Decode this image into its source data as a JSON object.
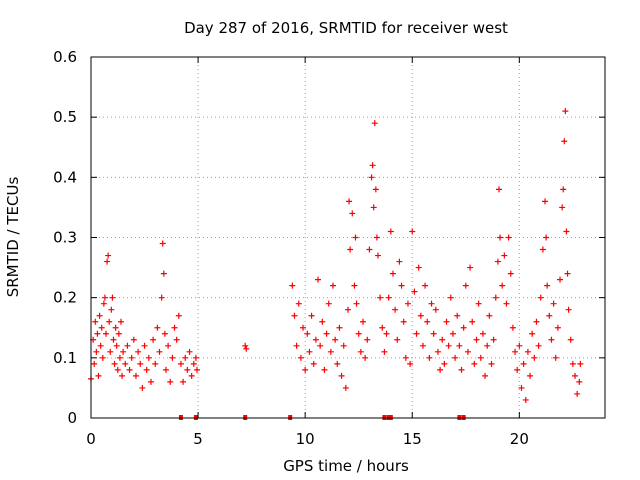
{
  "chart_data": {
    "type": "scatter",
    "title": "Day 287 of 2016, SRMTID for receiver west",
    "xlabel": "GPS time / hours",
    "ylabel": "SRMTID / TECUs",
    "xlim": [
      0,
      24
    ],
    "ylim": [
      0,
      0.6
    ],
    "grid": true,
    "xticks": [
      0,
      5,
      10,
      15,
      20
    ],
    "xtick_labels": [
      "0",
      "5",
      "10",
      "15",
      "20"
    ],
    "yticks": [
      0,
      0.1,
      0.2,
      0.3,
      0.4,
      0.5,
      0.6
    ],
    "ytick_labels": [
      "0",
      "0.1",
      "0.2",
      "0.3",
      "0.4",
      "0.5",
      "0.6"
    ],
    "marker": "+",
    "color": "#ff0000",
    "zero_markers_x": [
      4.2,
      4.9,
      7.2,
      9.3,
      13.7,
      13.9,
      14.0,
      17.2,
      17.4
    ],
    "series": [
      {
        "name": "SRMTID",
        "points": [
          [
            0.0,
            0.065
          ],
          [
            0.1,
            0.13
          ],
          [
            0.15,
            0.09
          ],
          [
            0.2,
            0.16
          ],
          [
            0.25,
            0.11
          ],
          [
            0.3,
            0.14
          ],
          [
            0.35,
            0.07
          ],
          [
            0.4,
            0.17
          ],
          [
            0.45,
            0.12
          ],
          [
            0.5,
            0.15
          ],
          [
            0.55,
            0.1
          ],
          [
            0.6,
            0.19
          ],
          [
            0.65,
            0.2
          ],
          [
            0.7,
            0.14
          ],
          [
            0.75,
            0.26
          ],
          [
            0.8,
            0.27
          ],
          [
            0.85,
            0.16
          ],
          [
            0.9,
            0.11
          ],
          [
            0.95,
            0.18
          ],
          [
            1.0,
            0.2
          ],
          [
            1.05,
            0.13
          ],
          [
            1.1,
            0.09
          ],
          [
            1.15,
            0.15
          ],
          [
            1.2,
            0.12
          ],
          [
            1.25,
            0.08
          ],
          [
            1.3,
            0.14
          ],
          [
            1.35,
            0.1
          ],
          [
            1.4,
            0.16
          ],
          [
            1.45,
            0.07
          ],
          [
            1.5,
            0.11
          ],
          [
            1.6,
            0.09
          ],
          [
            1.7,
            0.12
          ],
          [
            1.8,
            0.08
          ],
          [
            1.9,
            0.1
          ],
          [
            2.0,
            0.13
          ],
          [
            2.1,
            0.07
          ],
          [
            2.2,
            0.11
          ],
          [
            2.3,
            0.09
          ],
          [
            2.4,
            0.05
          ],
          [
            2.5,
            0.12
          ],
          [
            2.6,
            0.08
          ],
          [
            2.7,
            0.1
          ],
          [
            2.8,
            0.06
          ],
          [
            2.9,
            0.13
          ],
          [
            3.0,
            0.09
          ],
          [
            3.1,
            0.15
          ],
          [
            3.2,
            0.11
          ],
          [
            3.3,
            0.2
          ],
          [
            3.35,
            0.29
          ],
          [
            3.4,
            0.24
          ],
          [
            3.45,
            0.14
          ],
          [
            3.5,
            0.08
          ],
          [
            3.6,
            0.12
          ],
          [
            3.7,
            0.06
          ],
          [
            3.8,
            0.1
          ],
          [
            3.9,
            0.15
          ],
          [
            4.0,
            0.13
          ],
          [
            4.1,
            0.17
          ],
          [
            4.2,
            0.09
          ],
          [
            4.3,
            0.06
          ],
          [
            4.4,
            0.1
          ],
          [
            4.5,
            0.08
          ],
          [
            4.6,
            0.11
          ],
          [
            4.7,
            0.07
          ],
          [
            4.8,
            0.09
          ],
          [
            4.9,
            0.1
          ],
          [
            4.95,
            0.08
          ],
          [
            7.2,
            0.12
          ],
          [
            7.25,
            0.115
          ],
          [
            9.4,
            0.22
          ],
          [
            9.5,
            0.17
          ],
          [
            9.6,
            0.12
          ],
          [
            9.7,
            0.19
          ],
          [
            9.8,
            0.1
          ],
          [
            9.9,
            0.15
          ],
          [
            10.0,
            0.08
          ],
          [
            10.1,
            0.14
          ],
          [
            10.2,
            0.11
          ],
          [
            10.3,
            0.17
          ],
          [
            10.4,
            0.09
          ],
          [
            10.5,
            0.13
          ],
          [
            10.6,
            0.23
          ],
          [
            10.7,
            0.12
          ],
          [
            10.8,
            0.16
          ],
          [
            10.9,
            0.08
          ],
          [
            11.0,
            0.14
          ],
          [
            11.1,
            0.19
          ],
          [
            11.2,
            0.11
          ],
          [
            11.3,
            0.22
          ],
          [
            11.4,
            0.13
          ],
          [
            11.5,
            0.09
          ],
          [
            11.6,
            0.15
          ],
          [
            11.7,
            0.07
          ],
          [
            11.8,
            0.12
          ],
          [
            11.9,
            0.05
          ],
          [
            12.0,
            0.18
          ],
          [
            12.05,
            0.36
          ],
          [
            12.1,
            0.28
          ],
          [
            12.2,
            0.34
          ],
          [
            12.3,
            0.22
          ],
          [
            12.35,
            0.3
          ],
          [
            12.4,
            0.19
          ],
          [
            12.5,
            0.14
          ],
          [
            12.6,
            0.11
          ],
          [
            12.7,
            0.16
          ],
          [
            12.8,
            0.1
          ],
          [
            12.9,
            0.13
          ],
          [
            13.0,
            0.28
          ],
          [
            13.1,
            0.4
          ],
          [
            13.15,
            0.42
          ],
          [
            13.2,
            0.35
          ],
          [
            13.25,
            0.49
          ],
          [
            13.3,
            0.38
          ],
          [
            13.35,
            0.3
          ],
          [
            13.4,
            0.27
          ],
          [
            13.5,
            0.2
          ],
          [
            13.6,
            0.15
          ],
          [
            13.7,
            0.11
          ],
          [
            13.8,
            0.14
          ],
          [
            13.9,
            0.2
          ],
          [
            14.0,
            0.31
          ],
          [
            14.1,
            0.24
          ],
          [
            14.2,
            0.18
          ],
          [
            14.3,
            0.13
          ],
          [
            14.4,
            0.26
          ],
          [
            14.5,
            0.22
          ],
          [
            14.6,
            0.16
          ],
          [
            14.7,
            0.1
          ],
          [
            14.8,
            0.19
          ],
          [
            14.9,
            0.09
          ],
          [
            15.0,
            0.31
          ],
          [
            15.1,
            0.21
          ],
          [
            15.2,
            0.14
          ],
          [
            15.3,
            0.25
          ],
          [
            15.4,
            0.17
          ],
          [
            15.5,
            0.12
          ],
          [
            15.6,
            0.22
          ],
          [
            15.7,
            0.16
          ],
          [
            15.8,
            0.1
          ],
          [
            15.9,
            0.19
          ],
          [
            16.0,
            0.14
          ],
          [
            16.1,
            0.18
          ],
          [
            16.2,
            0.11
          ],
          [
            16.3,
            0.08
          ],
          [
            16.4,
            0.13
          ],
          [
            16.5,
            0.09
          ],
          [
            16.6,
            0.16
          ],
          [
            16.7,
            0.12
          ],
          [
            16.8,
            0.2
          ],
          [
            16.9,
            0.14
          ],
          [
            17.0,
            0.1
          ],
          [
            17.1,
            0.17
          ],
          [
            17.2,
            0.12
          ],
          [
            17.3,
            0.08
          ],
          [
            17.4,
            0.15
          ],
          [
            17.5,
            0.22
          ],
          [
            17.6,
            0.11
          ],
          [
            17.7,
            0.25
          ],
          [
            17.8,
            0.16
          ],
          [
            17.9,
            0.09
          ],
          [
            18.0,
            0.13
          ],
          [
            18.1,
            0.19
          ],
          [
            18.2,
            0.1
          ],
          [
            18.3,
            0.14
          ],
          [
            18.4,
            0.07
          ],
          [
            18.5,
            0.12
          ],
          [
            18.6,
            0.17
          ],
          [
            18.7,
            0.09
          ],
          [
            18.8,
            0.13
          ],
          [
            18.9,
            0.2
          ],
          [
            19.0,
            0.26
          ],
          [
            19.05,
            0.38
          ],
          [
            19.1,
            0.3
          ],
          [
            19.2,
            0.22
          ],
          [
            19.3,
            0.27
          ],
          [
            19.4,
            0.19
          ],
          [
            19.5,
            0.3
          ],
          [
            19.6,
            0.24
          ],
          [
            19.7,
            0.15
          ],
          [
            19.8,
            0.11
          ],
          [
            19.9,
            0.08
          ],
          [
            20.0,
            0.12
          ],
          [
            20.1,
            0.05
          ],
          [
            20.2,
            0.09
          ],
          [
            20.3,
            0.03
          ],
          [
            20.4,
            0.11
          ],
          [
            20.5,
            0.07
          ],
          [
            20.6,
            0.14
          ],
          [
            20.7,
            0.1
          ],
          [
            20.8,
            0.16
          ],
          [
            20.9,
            0.12
          ],
          [
            21.0,
            0.2
          ],
          [
            21.1,
            0.28
          ],
          [
            21.2,
            0.36
          ],
          [
            21.25,
            0.3
          ],
          [
            21.3,
            0.22
          ],
          [
            21.4,
            0.17
          ],
          [
            21.5,
            0.13
          ],
          [
            21.6,
            0.19
          ],
          [
            21.7,
            0.1
          ],
          [
            21.8,
            0.15
          ],
          [
            21.9,
            0.23
          ],
          [
            22.0,
            0.35
          ],
          [
            22.05,
            0.38
          ],
          [
            22.1,
            0.46
          ],
          [
            22.15,
            0.51
          ],
          [
            22.2,
            0.31
          ],
          [
            22.25,
            0.24
          ],
          [
            22.3,
            0.18
          ],
          [
            22.4,
            0.13
          ],
          [
            22.5,
            0.09
          ],
          [
            22.6,
            0.07
          ],
          [
            22.7,
            0.04
          ],
          [
            22.8,
            0.06
          ],
          [
            22.85,
            0.09
          ]
        ]
      }
    ]
  }
}
